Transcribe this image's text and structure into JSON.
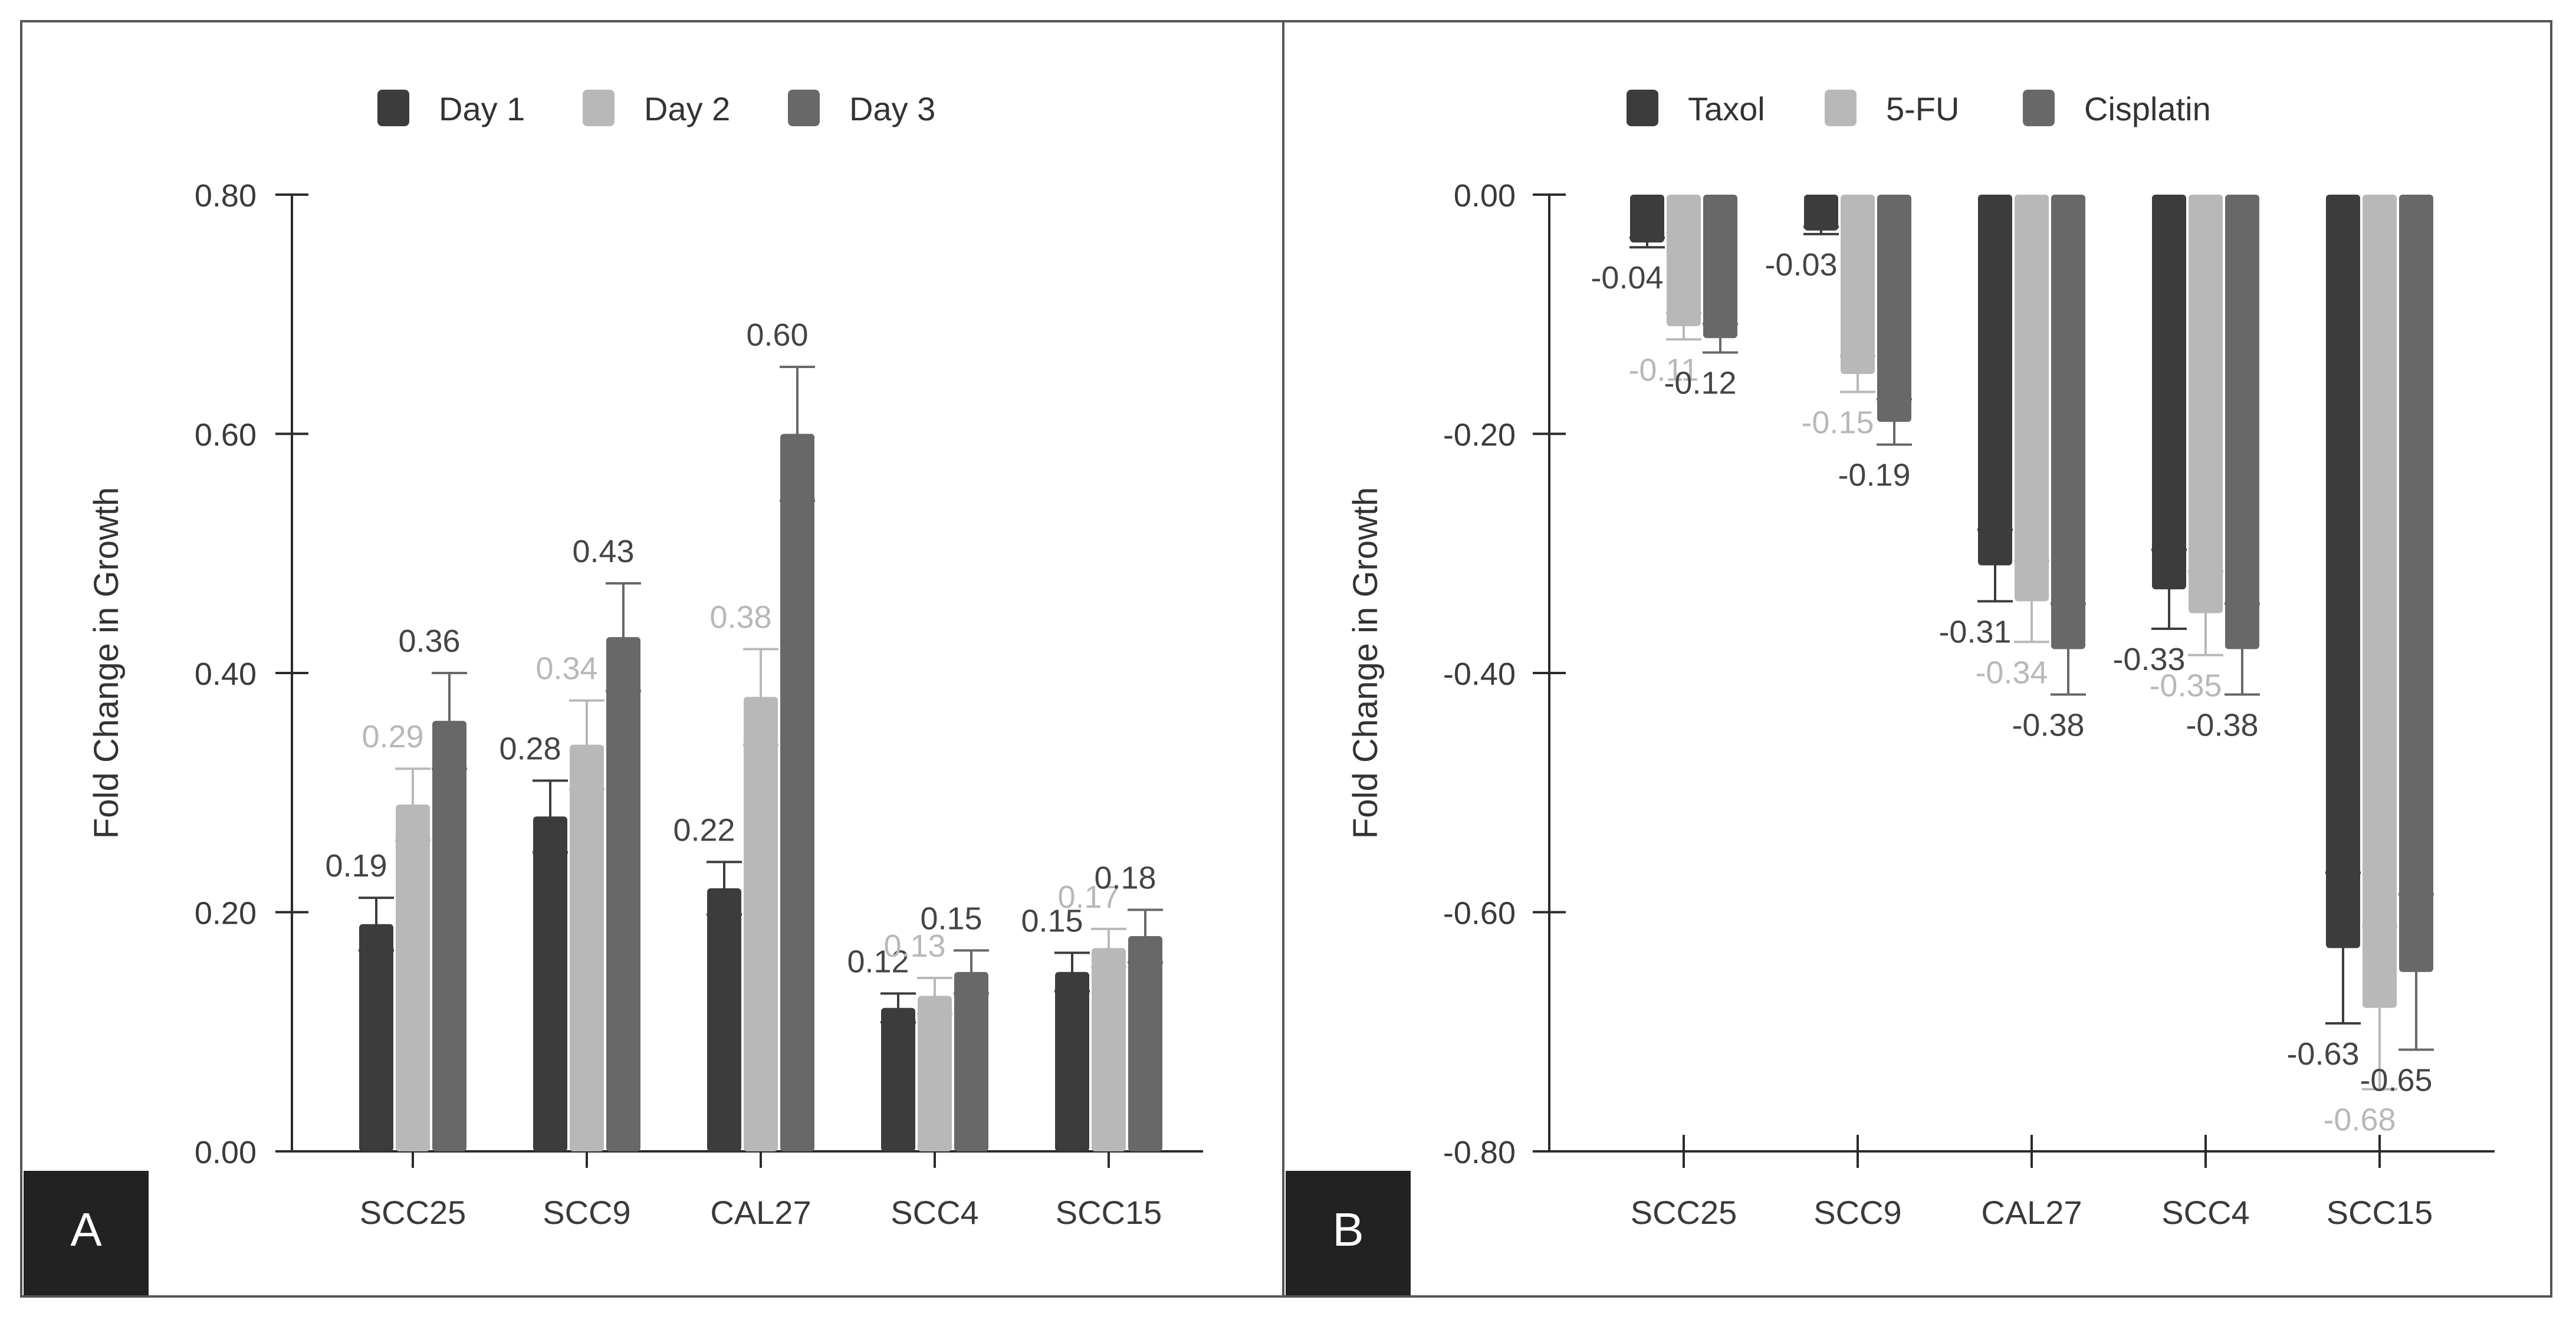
{
  "colors": {
    "dark": "#3c3c3c",
    "light": "#b8b8b8",
    "mid": "#686868",
    "axis": "#2a2a2a",
    "border": "#555555",
    "label_box": "#222222",
    "label_text": "#ffffff",
    "tick_text": "#3a3a3a"
  },
  "panels": {
    "a": {
      "label": "A"
    },
    "b": {
      "label": "B"
    }
  },
  "chart_data": [
    {
      "type": "bar",
      "panel": "A",
      "ylabel": "Fold Change in Growth",
      "xlabel": "",
      "title": "",
      "ylim": [
        0,
        0.8
      ],
      "yticks": [
        0.0,
        0.2,
        0.4,
        0.6,
        0.8
      ],
      "ytick_labels": [
        "0.00",
        "0.20",
        "0.40",
        "0.60",
        "0.80"
      ],
      "categories": [
        "SCC25",
        "SCC9",
        "CAL27",
        "SCC4",
        "SCC15"
      ],
      "legend_position": "top-center",
      "series": [
        {
          "name": "Day 1",
          "color": "#3c3c3c",
          "values": [
            0.19,
            0.28,
            0.22,
            0.12,
            0.15
          ],
          "errors": [
            0.022,
            0.03,
            0.022,
            0.012,
            0.016
          ],
          "labels": [
            "0.19",
            "0.28",
            "0.22",
            "0.12",
            "0.15"
          ]
        },
        {
          "name": "Day 2",
          "color": "#b8b8b8",
          "values": [
            0.29,
            0.34,
            0.38,
            0.13,
            0.17
          ],
          "errors": [
            0.03,
            0.037,
            0.04,
            0.015,
            0.016
          ],
          "labels": [
            "0.29",
            "0.34",
            "0.38",
            "0.13",
            "0.17"
          ]
        },
        {
          "name": "Day 3",
          "color": "#686868",
          "values": [
            0.36,
            0.43,
            0.6,
            0.15,
            0.18
          ],
          "errors": [
            0.04,
            0.045,
            0.056,
            0.018,
            0.022
          ],
          "labels": [
            "0.36",
            "0.43",
            "0.60",
            "0.15",
            "0.18"
          ]
        }
      ]
    },
    {
      "type": "bar",
      "panel": "B",
      "ylabel": "Fold Change in Growth",
      "xlabel": "",
      "title": "",
      "ylim": [
        -0.8,
        0
      ],
      "yticks": [
        0.0,
        -0.2,
        -0.4,
        -0.6,
        -0.8
      ],
      "ytick_labels": [
        "0.00",
        "-0.20",
        "-0.40",
        "-0.60",
        "-0.80"
      ],
      "categories": [
        "SCC25",
        "SCC9",
        "CAL27",
        "SCC4",
        "SCC15"
      ],
      "legend_position": "top-center",
      "series": [
        {
          "name": "Taxol",
          "color": "#3c3c3c",
          "values": [
            -0.04,
            -0.03,
            -0.31,
            -0.33,
            -0.63
          ],
          "errors": [
            0.004,
            0.003,
            0.03,
            0.033,
            0.063
          ],
          "labels": [
            "-0.04",
            "-0.03",
            "-0.31",
            "-0.33",
            "-0.63"
          ]
        },
        {
          "name": "5-FU",
          "color": "#b8b8b8",
          "values": [
            -0.11,
            -0.15,
            -0.34,
            -0.35,
            -0.68
          ],
          "errors": [
            0.011,
            0.015,
            0.034,
            0.035,
            0.068
          ],
          "labels": [
            "-0.11",
            "-0.15",
            "-0.34",
            "-0.35",
            "-0.68"
          ]
        },
        {
          "name": "Cisplatin",
          "color": "#686868",
          "values": [
            -0.12,
            -0.19,
            -0.38,
            -0.38,
            -0.65
          ],
          "errors": [
            0.012,
            0.019,
            0.038,
            0.038,
            0.065
          ],
          "labels": [
            "-0.12",
            "-0.19",
            "-0.38",
            "-0.38",
            "-0.65"
          ]
        }
      ]
    }
  ]
}
